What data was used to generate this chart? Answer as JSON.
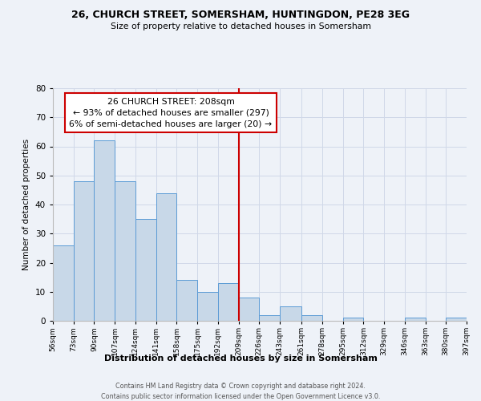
{
  "title1": "26, CHURCH STREET, SOMERSHAM, HUNTINGDON, PE28 3EG",
  "title2": "Size of property relative to detached houses in Somersham",
  "xlabel": "Distribution of detached houses by size in Somersham",
  "ylabel": "Number of detached properties",
  "bin_edges": [
    56,
    73,
    90,
    107,
    124,
    141,
    158,
    175,
    192,
    209,
    226,
    243,
    261,
    278,
    295,
    312,
    329,
    346,
    363,
    380,
    397
  ],
  "bin_counts": [
    26,
    48,
    62,
    48,
    35,
    44,
    14,
    10,
    13,
    8,
    2,
    5,
    2,
    0,
    1,
    0,
    0,
    1,
    0,
    1
  ],
  "bar_color": "#c8d8e8",
  "bar_edge_color": "#5b9bd5",
  "property_line_x": 209,
  "property_line_color": "#cc0000",
  "annotation_line1": "26 CHURCH STREET: 208sqm",
  "annotation_line2": "← 93% of detached houses are smaller (297)",
  "annotation_line3": "6% of semi-detached houses are larger (20) →",
  "annotation_box_color": "#ffffff",
  "annotation_box_edge": "#cc0000",
  "ylim": [
    0,
    80
  ],
  "yticks": [
    0,
    10,
    20,
    30,
    40,
    50,
    60,
    70,
    80
  ],
  "grid_color": "#d0d8e8",
  "footer1": "Contains HM Land Registry data © Crown copyright and database right 2024.",
  "footer2": "Contains public sector information licensed under the Open Government Licence v3.0.",
  "background_color": "#eef2f8"
}
